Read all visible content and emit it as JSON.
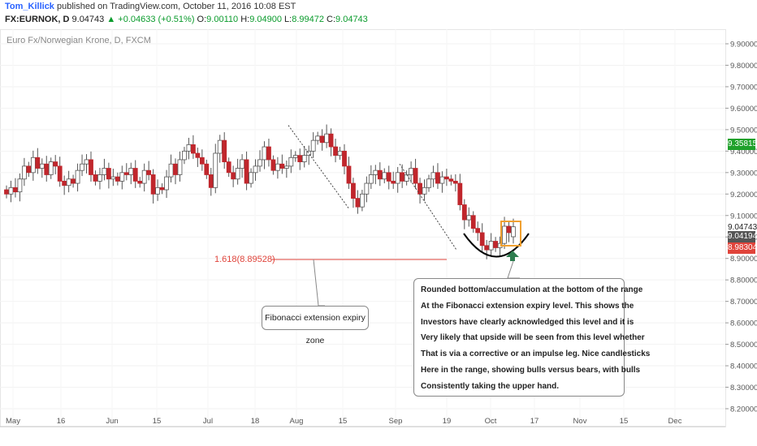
{
  "header": {
    "author": "Tom_Killick",
    "published_text": "published on TradingView.com, October 11, 2016 10:08 EST",
    "symbol": "FX:EURNOK, D",
    "last": "9.04743",
    "arrow": "▲",
    "change": "+0.04633 (+0.51%)",
    "o_label": "O:",
    "o_value": "9.00110",
    "h_label": "H:",
    "h_value": "9.04900",
    "l_label": "L:",
    "l_value": "8.99472",
    "c_label": "C:",
    "c_value": "9.04743"
  },
  "chart_data": {
    "type": "candlestick",
    "title": "Euro Fx/Norwegian Krone, D, FXCM",
    "y_ticks": [
      "9.90000",
      "9.80000",
      "9.70000",
      "9.60000",
      "9.50000",
      "9.40000",
      "9.30000",
      "9.20000",
      "9.10000",
      "9.00000",
      "8.90000",
      "8.80000",
      "8.70000",
      "8.60000",
      "8.50000",
      "8.40000",
      "8.30000",
      "8.20000"
    ],
    "ylim": [
      8.15,
      9.95
    ],
    "x_ticks": [
      "May",
      "16",
      "Jun",
      "15",
      "Jul",
      "18",
      "Aug",
      "15",
      "Sep",
      "19",
      "Oct",
      "17",
      "Nov",
      "15",
      "Dec"
    ],
    "price_tags": [
      {
        "value": "9.35815",
        "color": "#1fa12b"
      },
      {
        "value": "9.04743",
        "color": "#ffffff"
      },
      {
        "value": "9.04194",
        "color": "#555555"
      },
      {
        "value": "8.98304",
        "color": "#e0443b"
      }
    ],
    "fibonacci": {
      "label": "1.618(8.89528)",
      "level": 8.89528
    },
    "candles": [
      [
        9.22,
        9.2
      ],
      [
        9.2,
        9.23
      ],
      [
        9.23,
        9.21
      ],
      [
        9.21,
        9.27
      ],
      [
        9.27,
        9.33
      ],
      [
        9.33,
        9.3
      ],
      [
        9.3,
        9.37
      ],
      [
        9.37,
        9.32
      ],
      [
        9.32,
        9.34
      ],
      [
        9.34,
        9.29
      ],
      [
        9.29,
        9.35
      ],
      [
        9.35,
        9.33
      ],
      [
        9.33,
        9.26
      ],
      [
        9.26,
        9.24
      ],
      [
        9.24,
        9.27
      ],
      [
        9.27,
        9.25
      ],
      [
        9.25,
        9.31
      ],
      [
        9.31,
        9.34
      ],
      [
        9.34,
        9.36
      ],
      [
        9.36,
        9.29
      ],
      [
        9.29,
        9.26
      ],
      [
        9.26,
        9.29
      ],
      [
        9.29,
        9.32
      ],
      [
        9.32,
        9.27
      ],
      [
        9.27,
        9.28
      ],
      [
        9.28,
        9.26
      ],
      [
        9.26,
        9.3
      ],
      [
        9.3,
        9.29
      ],
      [
        9.29,
        9.32
      ],
      [
        9.32,
        9.26
      ],
      [
        9.26,
        9.25
      ],
      [
        9.25,
        9.31
      ],
      [
        9.31,
        9.29
      ],
      [
        9.29,
        9.2
      ],
      [
        9.2,
        9.23
      ],
      [
        9.23,
        9.22
      ],
      [
        9.22,
        9.28
      ],
      [
        9.28,
        9.34
      ],
      [
        9.34,
        9.29
      ],
      [
        9.29,
        9.36
      ],
      [
        9.36,
        9.4
      ],
      [
        9.4,
        9.43
      ],
      [
        9.43,
        9.39
      ],
      [
        9.39,
        9.37
      ],
      [
        9.37,
        9.34
      ],
      [
        9.34,
        9.29
      ],
      [
        9.29,
        9.23
      ],
      [
        9.23,
        9.39
      ],
      [
        9.39,
        9.45
      ],
      [
        9.45,
        9.35
      ],
      [
        9.35,
        9.3
      ],
      [
        9.3,
        9.27
      ],
      [
        9.27,
        9.32
      ],
      [
        9.32,
        9.36
      ],
      [
        9.36,
        9.25
      ],
      [
        9.25,
        9.3
      ],
      [
        9.3,
        9.33
      ],
      [
        9.33,
        9.36
      ],
      [
        9.36,
        9.42
      ],
      [
        9.42,
        9.36
      ],
      [
        9.36,
        9.31
      ],
      [
        9.31,
        9.34
      ],
      [
        9.34,
        9.32
      ],
      [
        9.32,
        9.33
      ],
      [
        9.33,
        9.37
      ],
      [
        9.37,
        9.38
      ],
      [
        9.38,
        9.35
      ],
      [
        9.35,
        9.38
      ],
      [
        9.38,
        9.4
      ],
      [
        9.4,
        9.45
      ],
      [
        9.45,
        9.47
      ],
      [
        9.47,
        9.44
      ],
      [
        9.44,
        9.48
      ],
      [
        9.48,
        9.42
      ],
      [
        9.42,
        9.38
      ],
      [
        9.38,
        9.4
      ],
      [
        9.4,
        9.33
      ],
      [
        9.33,
        9.25
      ],
      [
        9.25,
        9.18
      ],
      [
        9.18,
        9.14
      ],
      [
        9.14,
        9.2
      ],
      [
        9.2,
        9.25
      ],
      [
        9.25,
        9.29
      ],
      [
        9.29,
        9.31
      ],
      [
        9.31,
        9.27
      ],
      [
        9.27,
        9.3
      ],
      [
        9.3,
        9.26
      ],
      [
        9.26,
        9.25
      ],
      [
        9.25,
        9.3
      ],
      [
        9.3,
        9.26
      ],
      [
        9.26,
        9.29
      ],
      [
        9.29,
        9.32
      ],
      [
        9.32,
        9.25
      ],
      [
        9.25,
        9.2
      ],
      [
        9.2,
        9.23
      ],
      [
        9.23,
        9.27
      ],
      [
        9.27,
        9.3
      ],
      [
        9.3,
        9.25
      ],
      [
        9.25,
        9.28
      ],
      [
        9.28,
        9.27
      ],
      [
        9.27,
        9.26
      ],
      [
        9.26,
        9.25
      ],
      [
        9.25,
        9.15
      ],
      [
        9.15,
        9.08
      ],
      [
        9.08,
        9.1
      ],
      [
        9.1,
        9.04
      ],
      [
        9.04,
        9.02
      ],
      [
        9.02,
        8.96
      ],
      [
        8.96,
        8.94
      ],
      [
        8.94,
        8.98
      ],
      [
        8.98,
        8.95
      ],
      [
        8.95,
        8.97
      ],
      [
        8.97,
        9.05
      ],
      [
        9.05,
        9.02
      ],
      [
        9.0011,
        9.04743
      ]
    ]
  },
  "annotations": {
    "fib_note": "Fibonacci extension expiry zone",
    "main_note": [
      "Rounded bottom/accumulation at the bottom of the range",
      "At the Fibonacci extension expiry level. This shows the",
      "Investors have clearly acknowledged this level and it is",
      "Very likely that upside will be seen from this level whether",
      "That is via a corrective or an impulse leg. Nice candlesticks",
      "Here in the range, showing bulls versus bears, with bulls",
      "Consistently taking the upper hand."
    ]
  },
  "colors": {
    "up": "#ffffff",
    "down": "#c0262c",
    "wick": "#555555",
    "fib": "#e0443b",
    "arc": "#000000",
    "highlight": "#f0a030",
    "arrow": "#2e7d4f"
  }
}
